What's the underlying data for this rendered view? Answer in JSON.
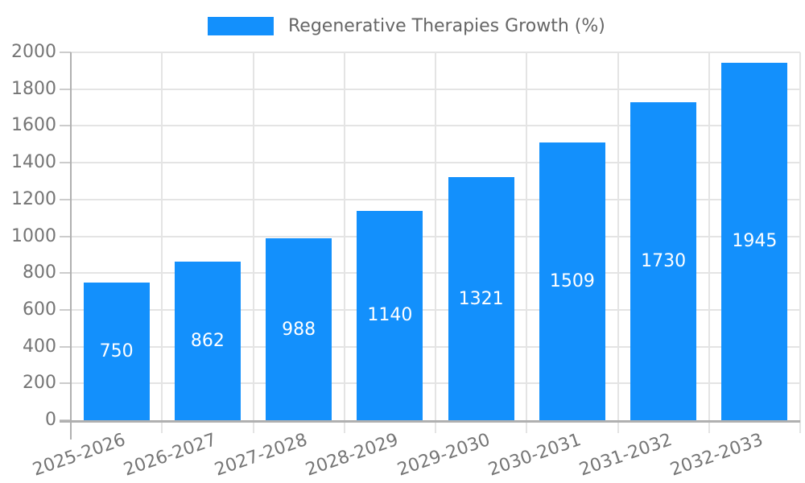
{
  "chart_data": {
    "type": "bar",
    "title": "Regenerative Therapies Growth (%)",
    "categories": [
      "2025-2026",
      "2026-2027",
      "2027-2028",
      "2028-2029",
      "2029-2030",
      "2030-2031",
      "2031-2032",
      "2032-2033"
    ],
    "values": [
      750,
      862,
      988,
      1140,
      1321,
      1509,
      1730,
      1945
    ],
    "series": [
      {
        "name": "Regenerative Therapies Growth (%)",
        "values": [
          750,
          862,
          988,
          1140,
          1321,
          1509,
          1730,
          1945
        ]
      }
    ],
    "xlabel": "",
    "ylabel": "",
    "ylim": [
      0,
      2000
    ],
    "ytick_step": 200,
    "ytick_labels": [
      "0",
      "200",
      "400",
      "600",
      "800",
      "1000",
      "1200",
      "1400",
      "1600",
      "1800",
      "2000"
    ],
    "grid": true,
    "legend_position": "top-center",
    "value_labels": "inside-center",
    "colors": {
      "bar": "#1390fc",
      "value_label_text": "#ffffff",
      "axis_text": "#757575",
      "legend_text": "#666666",
      "gridline": "#e4e4e4",
      "tick": "#cccccc",
      "axis_line": "#b0b0b0",
      "background": "#ffffff"
    }
  }
}
